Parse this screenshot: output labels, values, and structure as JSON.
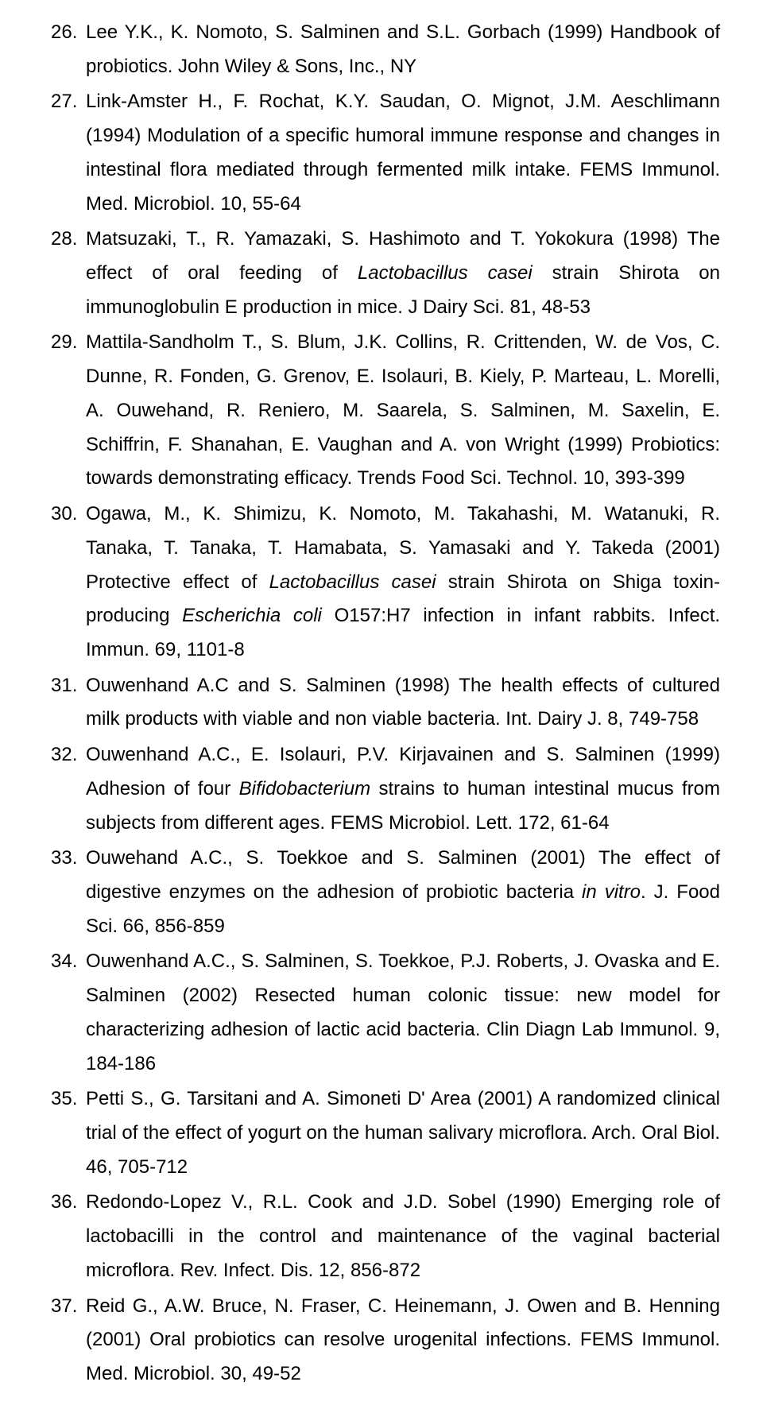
{
  "typography": {
    "font_family": "Arial",
    "font_size_pt": 18,
    "line_height": 1.78,
    "color": "#000000",
    "background": "#ffffff",
    "align": "justify"
  },
  "start_number": 26,
  "references": [
    {
      "pre": "Lee Y.K., K. Nomoto, S. Salminen and S.L. Gorbach (1999) Handbook of probiotics. John Wiley & Sons, Inc., NY"
    },
    {
      "pre": "Link-Amster H., F. Rochat, K.Y. Saudan, O. Mignot, J.M. Aeschlimann (1994) Modulation of a specific humoral immune response and changes in intestinal flora mediated through fermented milk intake. FEMS Immunol. Med. Microbiol. 10, 55-64"
    },
    {
      "pre": "Matsuzaki, T., R. Yamazaki, S. Hashimoto and T. Yokokura (1998) The effect of oral feeding of ",
      "em1": "Lactobacillus casei",
      "post1": " strain Shirota on immunoglobulin E production in mice. J Dairy Sci. 81, 48-53"
    },
    {
      "pre": "Mattila-Sandholm T., S. Blum, J.K. Collins, R. Crittenden, W. de Vos, C. Dunne, R. Fonden, G. Grenov, E. Isolauri, B. Kiely, P. Marteau, L. Morelli, A. Ouwehand, R. Reniero, M. Saarela, S. Salminen, M. Saxelin, E. Schiffrin, F. Shanahan, E. Vaughan and A. von Wright (1999) Probiotics: towards demonstrating efficacy. Trends Food Sci. Technol. 10, 393-399"
    },
    {
      "pre": "Ogawa, M., K. Shimizu, K. Nomoto, M. Takahashi, M. Watanuki, R. Tanaka, T. Tanaka, T. Hamabata, S. Yamasaki and Y. Takeda (2001) Protective effect of ",
      "em1": "Lactobacillus casei",
      "post1": " strain Shirota on Shiga toxin-producing ",
      "em2": "Escherichia coli",
      "post2": " O157:H7 infection in infant rabbits. Infect. Immun. 69, 1101-8"
    },
    {
      "pre": "Ouwenhand A.C and S. Salminen (1998) The health effects of cultured milk products with viable and non viable bacteria. Int. Dairy J. 8, 749-758"
    },
    {
      "pre": "Ouwenhand A.C., E. Isolauri, P.V. Kirjavainen and S. Salminen (1999) Adhesion of four ",
      "em1": "Bifidobacterium",
      "post1": " strains to human intestinal mucus from subjects from different ages. FEMS Microbiol. Lett. 172, 61-64"
    },
    {
      "pre": "Ouwehand A.C., S. Toekkoe and S. Salminen (2001) The effect of digestive enzymes on the adhesion of probiotic bacteria ",
      "em1": "in vitro",
      "post1": ". J. Food Sci. 66, 856-859"
    },
    {
      "pre": "Ouwenhand A.C., S. Salminen, S. Toekkoe, P.J. Roberts, J. Ovaska and E. Salminen (2002) Resected human colonic tissue: new model for characterizing adhesion of lactic acid bacteria. Clin Diagn Lab Immunol. 9, 184-186"
    },
    {
      "pre": "Petti S., G. Tarsitani and A. Simoneti D' Area (2001) A randomized clinical trial of the effect of yogurt on the human salivary microflora. Arch. Oral Biol. 46, 705-712"
    },
    {
      "pre": "Redondo-Lopez V., R.L. Cook and J.D. Sobel (1990) Emerging role of lactobacilli in the control and maintenance of the vaginal bacterial microflora. Rev. Infect. Dis. 12, 856-872"
    },
    {
      "pre": "Reid G., A.W. Bruce, N. Fraser, C. Heinemann, J. Owen and B. Henning (2001) Oral probiotics can resolve urogenital infections. FEMS Immunol. Med. Microbiol. 30, 49-52"
    }
  ]
}
